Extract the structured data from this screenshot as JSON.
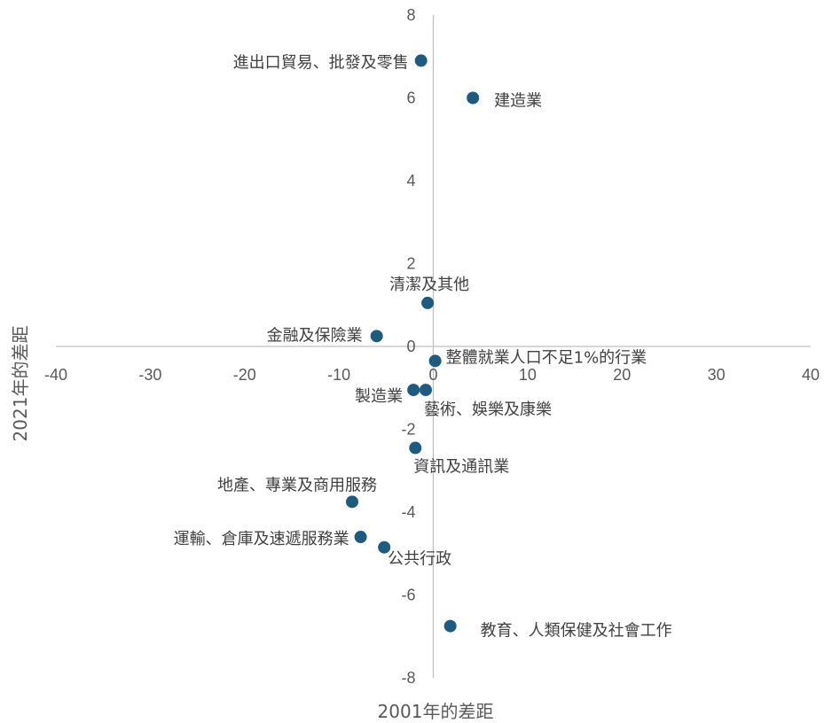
{
  "chart_data": {
    "type": "scatter",
    "xlabel": "2001年的差距",
    "ylabel": "2021年的差距",
    "xlim": [
      -40,
      40
    ],
    "ylim": [
      -8,
      8
    ],
    "xticks": [
      "-40",
      "-30",
      "-20",
      "-10",
      "0",
      "10",
      "20",
      "30",
      "40"
    ],
    "yticks": [
      "8",
      "6",
      "4",
      "2",
      "0",
      "-2",
      "-4",
      "-6",
      "-8"
    ],
    "grid": false,
    "legend": "none",
    "color": "#1f5b7e",
    "points": [
      {
        "label": "進出口貿易、批發及零售",
        "x": -1.3,
        "y": 6.9
      },
      {
        "label": "建造業",
        "x": 4.2,
        "y": 6.0
      },
      {
        "label": "清潔及其他",
        "x": -0.6,
        "y": 1.05
      },
      {
        "label": "金融及保險業",
        "x": -6.0,
        "y": 0.25
      },
      {
        "label": "整體就業人口不足1%的行業",
        "x": 0.2,
        "y": -0.35
      },
      {
        "label": "製造業",
        "x": -2.1,
        "y": -1.05
      },
      {
        "label": "藝術、娛樂及康樂",
        "x": -0.8,
        "y": -1.05
      },
      {
        "label": "資訊及通訊業",
        "x": -1.9,
        "y": -2.45
      },
      {
        "label": "地產、專業及商用服務",
        "x": -8.6,
        "y": -3.75
      },
      {
        "label": "運輸、倉庫及速遞服務業",
        "x": -7.7,
        "y": -4.6
      },
      {
        "label": "公共行政",
        "x": -5.2,
        "y": -4.85
      },
      {
        "label": "教育、人類保健及社會工作",
        "x": 1.8,
        "y": -6.75
      }
    ]
  }
}
